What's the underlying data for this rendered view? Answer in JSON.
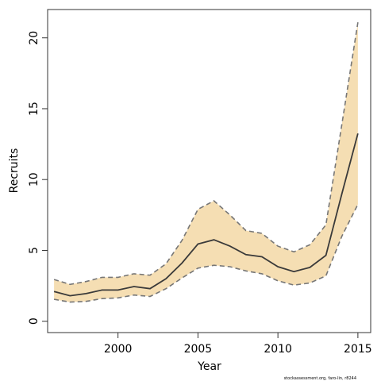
{
  "chart_data": {
    "type": "line",
    "title": "",
    "xlabel": "Year",
    "ylabel": "Recruits",
    "xlim": [
      1995.6,
      2015.8
    ],
    "ylim": [
      -0.8,
      22
    ],
    "x_ticks": [
      2000,
      2005,
      2010,
      2015
    ],
    "y_ticks": [
      0,
      5,
      10,
      15,
      20
    ],
    "grid": false,
    "legend": "none",
    "x": [
      1996,
      1997,
      1998,
      1999,
      2000,
      2001,
      2002,
      2003,
      2004,
      2005,
      2006,
      2007,
      2008,
      2009,
      2010,
      2011,
      2012,
      2013,
      2014,
      2015
    ],
    "series": [
      {
        "role": "estimate",
        "style": "solid",
        "values": [
          2.1,
          1.8,
          1.95,
          2.2,
          2.2,
          2.45,
          2.3,
          3.0,
          4.1,
          5.45,
          5.75,
          5.3,
          4.7,
          4.55,
          3.85,
          3.5,
          3.8,
          4.65,
          9.0,
          13.25
        ]
      },
      {
        "role": "upper",
        "style": "dashed",
        "values": [
          2.95,
          2.6,
          2.8,
          3.1,
          3.1,
          3.35,
          3.25,
          4.05,
          5.7,
          7.9,
          8.5,
          7.5,
          6.4,
          6.2,
          5.3,
          4.9,
          5.4,
          6.8,
          13.9,
          21.1
        ]
      },
      {
        "role": "lower",
        "style": "dashed",
        "values": [
          1.55,
          1.35,
          1.4,
          1.6,
          1.65,
          1.85,
          1.75,
          2.3,
          3.05,
          3.75,
          3.95,
          3.85,
          3.55,
          3.35,
          2.85,
          2.55,
          2.7,
          3.2,
          6.0,
          8.25
        ]
      }
    ],
    "colors": {
      "band": "#f5deb3",
      "estimate": "#3a3a3a",
      "bounds": "#777777",
      "frame": "#333333"
    },
    "credit": "stockassessment.org, faro-lin, r8244"
  }
}
